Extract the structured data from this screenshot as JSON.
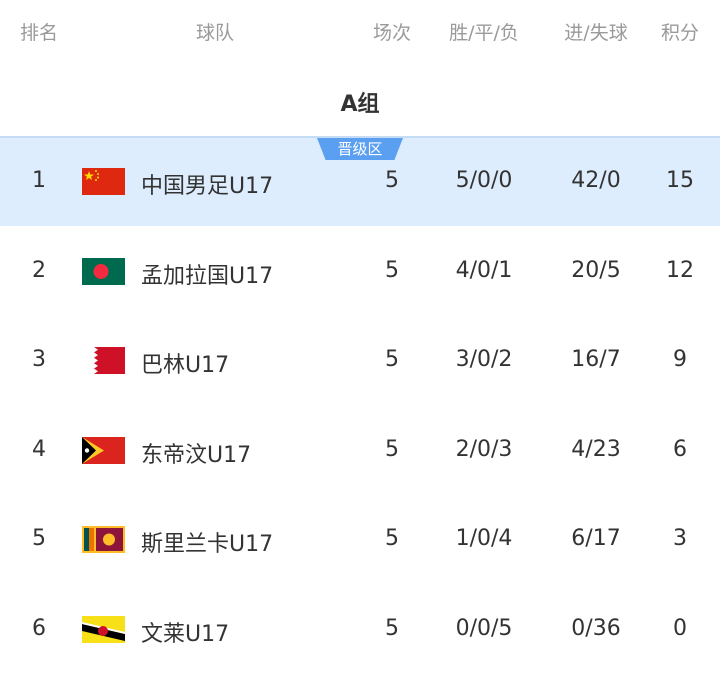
{
  "header": {
    "rank": "排名",
    "team": "球队",
    "played": "场次",
    "wdl": "胜/平/负",
    "goals": "进/失球",
    "points": "积分"
  },
  "group_title": "A组",
  "qualify_badge": "晋级区",
  "colors": {
    "highlight": "#deedfd",
    "badge": "#5b9ff0"
  },
  "rows": [
    {
      "rank": "1",
      "team": "中国男足U17",
      "flag": "china-flag",
      "played": "5",
      "wdl": "5/0/0",
      "goals": "42/0",
      "points": "15"
    },
    {
      "rank": "2",
      "team": "孟加拉国U17",
      "flag": "bangladesh-flag",
      "played": "5",
      "wdl": "4/0/1",
      "goals": "20/5",
      "points": "12"
    },
    {
      "rank": "3",
      "team": "巴林U17",
      "flag": "bahrain-flag",
      "played": "5",
      "wdl": "3/0/2",
      "goals": "16/7",
      "points": "9"
    },
    {
      "rank": "4",
      "team": "东帝汶U17",
      "flag": "timor-leste-flag",
      "played": "5",
      "wdl": "2/0/3",
      "goals": "4/23",
      "points": "6"
    },
    {
      "rank": "5",
      "team": "斯里兰卡U17",
      "flag": "sri-lanka-flag",
      "played": "5",
      "wdl": "1/0/4",
      "goals": "6/17",
      "points": "3"
    },
    {
      "rank": "6",
      "team": "文莱U17",
      "flag": "brunei-flag",
      "played": "5",
      "wdl": "0/0/5",
      "goals": "0/36",
      "points": "0"
    }
  ]
}
